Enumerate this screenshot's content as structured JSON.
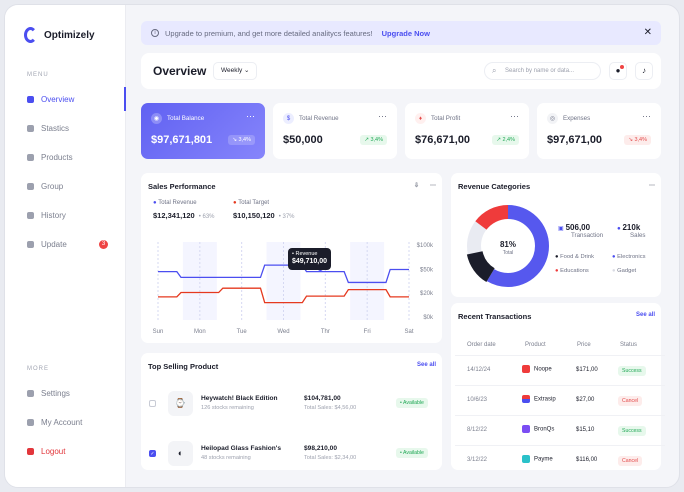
{
  "app": {
    "name": "Optimizely"
  },
  "sidebar": {
    "menu_label": "MENU",
    "items": [
      {
        "label": "Overview"
      },
      {
        "label": "Stastics"
      },
      {
        "label": "Products"
      },
      {
        "label": "Group"
      },
      {
        "label": "History"
      },
      {
        "label": "Update",
        "badge": "3"
      }
    ],
    "more_label": "MORE",
    "bottom": [
      {
        "label": "Settings"
      },
      {
        "label": "My Account"
      },
      {
        "label": "Logout"
      }
    ]
  },
  "banner": {
    "text": "Upgrade to premium, and get more detailed analitycs features!",
    "link": "Upgrade Now",
    "close": "✕"
  },
  "header": {
    "title": "Overview",
    "period": "Weekly",
    "search_placeholder": "Search by name or data..."
  },
  "kpis": [
    {
      "label": "Total Balance",
      "value": "$97,671,801",
      "delta": "↘ 3,4%"
    },
    {
      "label": "Total Revenue",
      "value": "$50,000",
      "delta": "↗ 3,4%"
    },
    {
      "label": "Total Profit",
      "value": "$76,671,00",
      "delta": "↗ 2,4%"
    },
    {
      "label": "Expenses",
      "value": "$97,671,00",
      "delta": "↘ 3,4%"
    }
  ],
  "sales": {
    "title": "Sales Performance",
    "revenue_label": "Total Revenue",
    "revenue_value": "$12,341,120",
    "revenue_pct": "63%",
    "target_label": "Total Target",
    "target_value": "$10,150,120",
    "target_pct": "37%",
    "tooltip_label": "Revenue",
    "tooltip_value": "$49,710,00"
  },
  "chart_data": {
    "type": "line",
    "categories": [
      "Sun",
      "Mon",
      "Tue",
      "Wed",
      "Thr",
      "Fri",
      "Sat"
    ],
    "y_ticks": [
      "$100k",
      "$50k",
      "$20k",
      "$0k"
    ],
    "series": [
      {
        "name": "Total Revenue",
        "values": [
          63,
          55,
          55,
          72,
          63,
          48,
          66
        ]
      },
      {
        "name": "Total Target",
        "values": [
          28,
          34,
          40,
          20,
          29,
          38,
          28
        ]
      }
    ]
  },
  "top_products": {
    "title": "Top Selling Product",
    "see_all": "See all",
    "items": [
      {
        "name": "Heywatch! Black Edition",
        "stock": "126 stocks remaining",
        "price": "$104,781,00",
        "sales": "Total Sales: $4,56,00",
        "status": "Available"
      },
      {
        "name": "Heilopad Glass Fashion's",
        "stock": "48 stocks remaining",
        "price": "$98,210,00",
        "sales": "Total Sales: $2,34,00",
        "status": "Available"
      }
    ]
  },
  "revenue_categories": {
    "title": "Revenue Categories",
    "center_value": "81%",
    "center_label": "Total",
    "transaction_value": "506,00",
    "transaction_label": "Transaction",
    "sales_value": "210k",
    "sales_label": "Sales",
    "legend": [
      "Food & Drink",
      "Electronics",
      "Educations",
      "Gadget"
    ]
  },
  "transactions": {
    "title": "Recent Transactions",
    "see_all": "See all",
    "headers": [
      "Order date",
      "Product",
      "Price",
      "Status"
    ],
    "rows": [
      {
        "date": "14/12/24",
        "product": "Noope",
        "price": "$171,00",
        "status": "Success"
      },
      {
        "date": "10/6/23",
        "product": "Extrasip",
        "price": "$27,00",
        "status": "Cancel"
      },
      {
        "date": "8/12/22",
        "product": "BronQs",
        "price": "$15,10",
        "status": "Success"
      },
      {
        "date": "3/12/22",
        "product": "Payme",
        "price": "$116,00",
        "status": "Cancel"
      }
    ]
  },
  "colors": {
    "primary": "#4b4ef0",
    "target": "#e5391f",
    "success": "#21a856",
    "cancel": "#e34b4b"
  }
}
